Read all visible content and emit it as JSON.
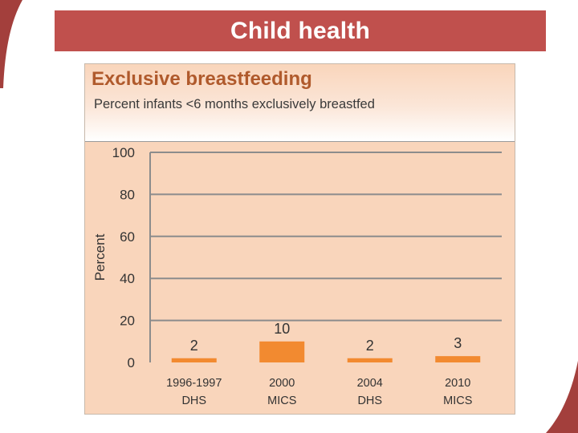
{
  "slide": {
    "heading": "Child health"
  },
  "colors": {
    "banner": "#c0504d",
    "chart_bg": "#f9d5bb",
    "bar": "#f28a30",
    "title": "#b05a2c",
    "grid": "#8c8c8c"
  },
  "chart_data": {
    "type": "bar",
    "title": "Exclusive breastfeeding",
    "subtitle": "Percent infants <6 months exclusively breastfed",
    "ylabel": "Percent",
    "xlabel": "",
    "ylim": [
      0,
      100
    ],
    "yticks": [
      0,
      20,
      40,
      60,
      80,
      100
    ],
    "grid": true,
    "categories": [
      [
        "1996-1997",
        "DHS"
      ],
      [
        "2000",
        "MICS"
      ],
      [
        "2004",
        "DHS"
      ],
      [
        "2010",
        "MICS"
      ]
    ],
    "values": [
      2,
      10,
      2,
      3
    ]
  }
}
